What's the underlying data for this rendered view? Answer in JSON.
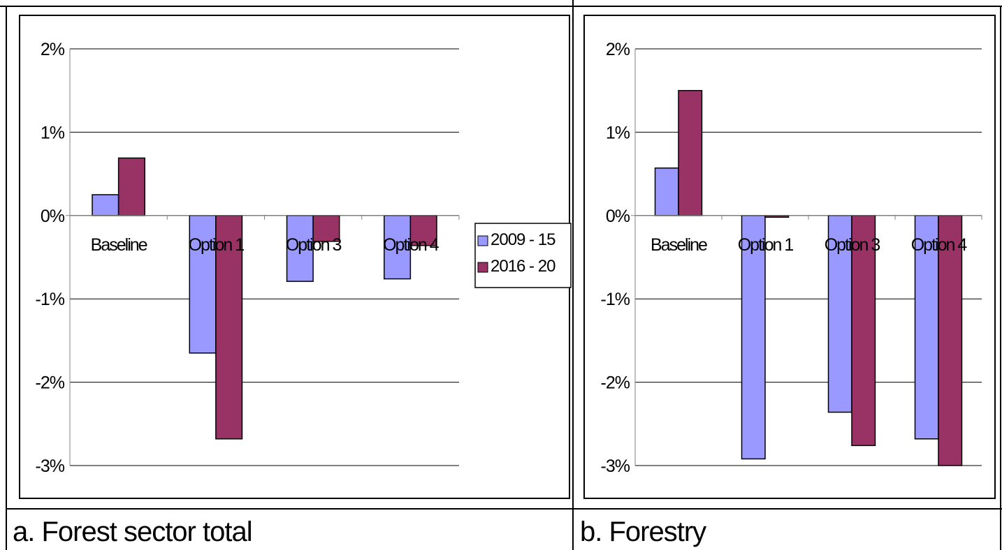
{
  "colors": {
    "series_1": "#9999ff",
    "series_2": "#993366",
    "grid": "#000000",
    "background": "#ffffff"
  },
  "panels": [
    {
      "caption": "a. Forest sector total",
      "chart_data": {
        "type": "bar",
        "title": "",
        "xlabel": "",
        "ylabel": "",
        "categories": [
          "Baseline",
          "Option 1",
          "Option 3",
          "Option 4"
        ],
        "series": [
          {
            "name": "2009 - 15",
            "values": [
              0.25,
              -1.65,
              -0.79,
              -0.76
            ]
          },
          {
            "name": "2016 - 20",
            "values": [
              0.69,
              -2.68,
              -0.31,
              -0.36
            ]
          }
        ],
        "ylim": [
          -3,
          2
        ],
        "yticks": [
          2,
          1,
          0,
          -1,
          -2,
          -3
        ],
        "ytick_labels": [
          "2%",
          "1%",
          "0%",
          "-1%",
          "-2%",
          "-3%"
        ],
        "grid": true,
        "legend": true,
        "legend_position": "right"
      }
    },
    {
      "caption": "b. Forestry",
      "chart_data": {
        "type": "bar",
        "title": "",
        "xlabel": "",
        "ylabel": "",
        "categories": [
          "Baseline",
          "Option 1",
          "Option 3",
          "Option 4"
        ],
        "series": [
          {
            "name": "2009 - 15",
            "values": [
              0.57,
              -2.92,
              -2.36,
              -2.68
            ]
          },
          {
            "name": "2016 - 20",
            "values": [
              1.5,
              -0.02,
              -2.76,
              -3.0
            ]
          }
        ],
        "ylim": [
          -3,
          2
        ],
        "yticks": [
          2,
          1,
          0,
          -1,
          -2,
          -3
        ],
        "ytick_labels": [
          "2%",
          "1%",
          "0%",
          "-1%",
          "-2%",
          "-3%"
        ],
        "grid": true,
        "legend": false
      }
    }
  ]
}
